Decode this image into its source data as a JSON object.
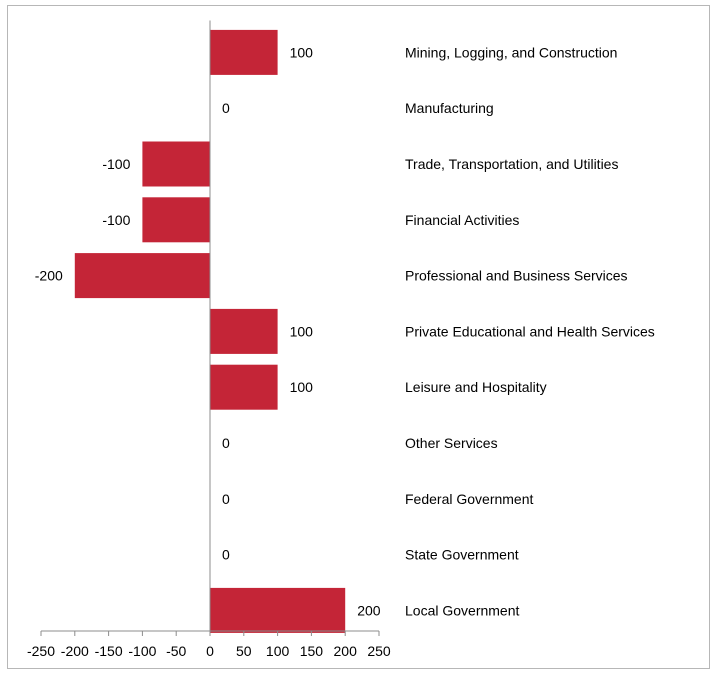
{
  "chart_data": {
    "type": "bar",
    "orientation": "horizontal",
    "categories": [
      "Mining, Logging, and Construction",
      "Manufacturing",
      "Trade, Transportation, and Utilities",
      "Financial Activities",
      "Professional and Business Services",
      "Private Educational and Health Services",
      "Leisure and Hospitality",
      "Other Services",
      "Federal Government",
      "State Government",
      "Local Government"
    ],
    "values": [
      100,
      0,
      -100,
      -100,
      -200,
      100,
      100,
      0,
      0,
      0,
      200
    ],
    "data_labels": [
      "100",
      "0",
      "-100",
      "-100",
      "-200",
      "100",
      "100",
      "0",
      "0",
      "0",
      "200"
    ],
    "xlim": [
      -250,
      250
    ],
    "x_ticks": [
      -250,
      -200,
      -150,
      -100,
      -50,
      0,
      50,
      100,
      150,
      200,
      250
    ],
    "x_tick_labels": [
      "-250",
      "-200",
      "-150",
      "-100",
      "-50",
      "0",
      "50",
      "100",
      "150",
      "200",
      "250"
    ],
    "title": "",
    "xlabel": "",
    "ylabel": "",
    "grid": false,
    "legend": "none",
    "colors": {
      "bar": "#c42537",
      "axis": "#8c8c8c",
      "text": "#000000",
      "border": "#b7b7b7"
    }
  }
}
